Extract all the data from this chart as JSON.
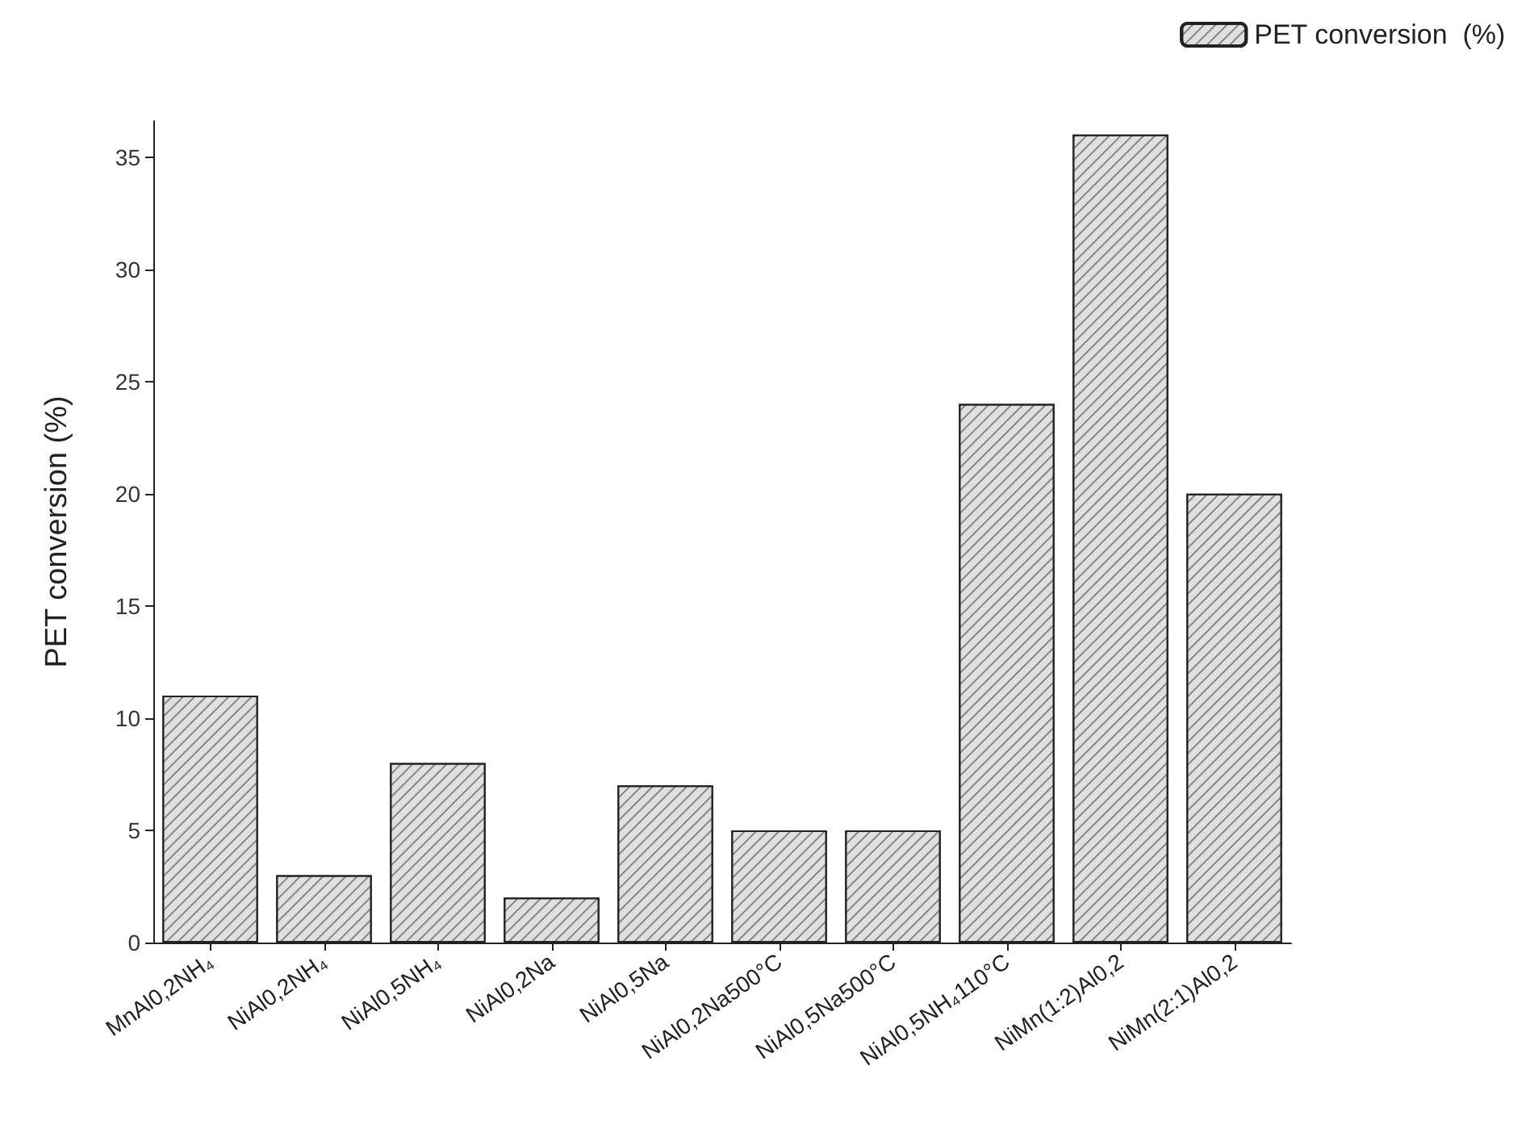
{
  "chart_data": {
    "type": "bar",
    "ylabel": "PET conversion (%)",
    "categories": [
      "MnAl0,2NH₄",
      "NiAl0,2NH₄",
      "NiAl0,5NH₄",
      "NiAl0,2Na",
      "NiAl0,5Na",
      "NiAl0,2Na500°C",
      "NiAl0,5Na500°C",
      "NiAl0,5NH₄110°C",
      "NiMn(1:2)Al0,2",
      "NiMn(2:1)Al0,2"
    ],
    "series": [
      {
        "name": "PET conversion  (%)",
        "color": "#e0e0e0",
        "values": [
          11,
          3,
          8,
          2,
          7,
          5,
          5,
          24,
          36,
          20
        ]
      }
    ],
    "ylim": [
      0,
      36.6
    ],
    "yticks": [
      0,
      5,
      10,
      15,
      20,
      25,
      30,
      35
    ],
    "grid": false,
    "legend": "top right"
  }
}
